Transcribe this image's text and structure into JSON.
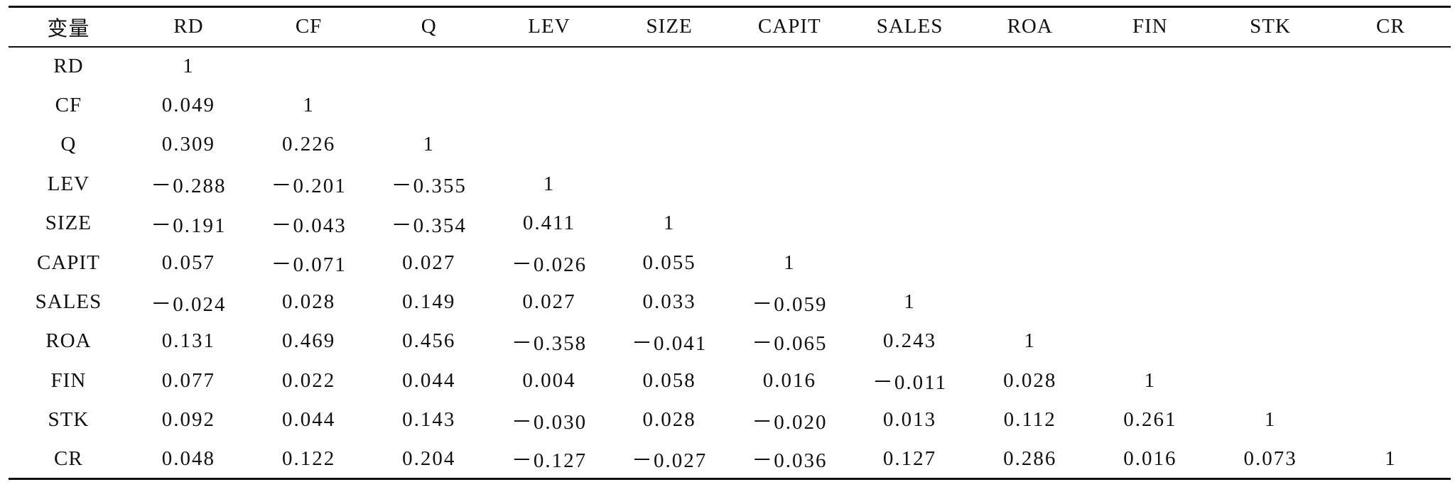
{
  "table": {
    "headers": [
      "变量",
      "RD",
      "CF",
      "Q",
      "LEV",
      "SIZE",
      "CAPIT",
      "SALES",
      "ROA",
      "FIN",
      "STK",
      "CR"
    ],
    "rows": [
      [
        "RD",
        "1",
        "",
        "",
        "",
        "",
        "",
        "",
        "",
        "",
        "",
        ""
      ],
      [
        "CF",
        "0.049",
        "1",
        "",
        "",
        "",
        "",
        "",
        "",
        "",
        "",
        ""
      ],
      [
        "Q",
        "0.309",
        "0.226",
        "1",
        "",
        "",
        "",
        "",
        "",
        "",
        "",
        ""
      ],
      [
        "LEV",
        "－0.288",
        "－0.201",
        "－0.355",
        "1",
        "",
        "",
        "",
        "",
        "",
        "",
        ""
      ],
      [
        "SIZE",
        "－0.191",
        "－0.043",
        "－0.354",
        "0.411",
        "1",
        "",
        "",
        "",
        "",
        "",
        ""
      ],
      [
        "CAPIT",
        "0.057",
        "－0.071",
        "0.027",
        "－0.026",
        "0.055",
        "1",
        "",
        "",
        "",
        "",
        ""
      ],
      [
        "SALES",
        "－0.024",
        "0.028",
        "0.149",
        "0.027",
        "0.033",
        "－0.059",
        "1",
        "",
        "",
        "",
        ""
      ],
      [
        "ROA",
        "0.131",
        "0.469",
        "0.456",
        "－0.358",
        "－0.041",
        "－0.065",
        "0.243",
        "1",
        "",
        "",
        ""
      ],
      [
        "FIN",
        "0.077",
        "0.022",
        "0.044",
        "0.004",
        "0.058",
        "0.016",
        "－0.011",
        "0.028",
        "1",
        "",
        ""
      ],
      [
        "STK",
        "0.092",
        "0.044",
        "0.143",
        "－0.030",
        "0.028",
        "－0.020",
        "0.013",
        "0.112",
        "0.261",
        "1",
        ""
      ],
      [
        "CR",
        "0.048",
        "0.122",
        "0.204",
        "－0.127",
        "－0.027",
        "－0.036",
        "0.127",
        "0.286",
        "0.016",
        "0.073",
        "1"
      ]
    ]
  }
}
